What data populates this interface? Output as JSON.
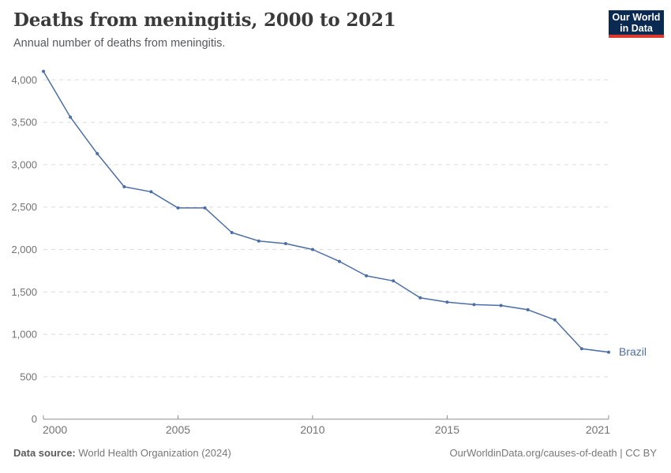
{
  "header": {
    "title": "Deaths from meningitis, 2000 to 2021",
    "subtitle": "Annual number of deaths from meningitis."
  },
  "logo": {
    "line1": "Our World",
    "line2": "in Data",
    "bg_color": "#0b2a51",
    "accent_color": "#dc382e"
  },
  "chart_data": {
    "type": "line",
    "title": "Deaths from meningitis, 2000 to 2021",
    "subtitle": "Annual number of deaths from meningitis.",
    "xlabel": "",
    "ylabel": "",
    "x": [
      2000,
      2001,
      2002,
      2003,
      2004,
      2005,
      2006,
      2007,
      2008,
      2009,
      2010,
      2011,
      2012,
      2013,
      2014,
      2015,
      2016,
      2017,
      2018,
      2019,
      2020,
      2021
    ],
    "series": [
      {
        "name": "Brazil",
        "color": "#4c6ea8",
        "values": [
          4100,
          3560,
          3130,
          2740,
          2680,
          2490,
          2490,
          2200,
          2100,
          2070,
          2000,
          1860,
          1690,
          1630,
          1430,
          1380,
          1350,
          1340,
          1290,
          1170,
          830,
          790
        ]
      }
    ],
    "ylim": [
      0,
      4000
    ],
    "yticks": [
      0,
      500,
      1000,
      1500,
      2000,
      2500,
      3000,
      3500,
      4000
    ],
    "ytick_labels": [
      "0",
      "500",
      "1,000",
      "1,500",
      "2,000",
      "2,500",
      "3,000",
      "3,500",
      "4,000"
    ],
    "xticks": [
      2000,
      2005,
      2010,
      2015,
      2021
    ],
    "xtick_labels": [
      "2000",
      "2005",
      "2010",
      "2015",
      "2021"
    ],
    "grid": "horizontal-dashed",
    "legend_position": "end-of-line",
    "colors": {
      "gridline": "#dcdcdc",
      "axis_line": "#8f8f8f",
      "tick_label": "#737373"
    }
  },
  "footer": {
    "source_label": "Data source:",
    "source_text": " World Health Organization (2024)",
    "link_text": "OurWorldinData.org/causes-of-death | CC BY"
  }
}
